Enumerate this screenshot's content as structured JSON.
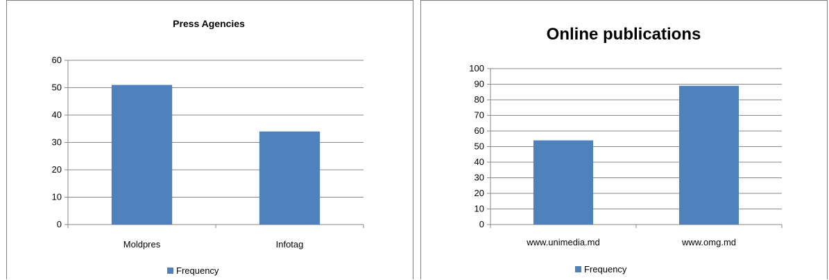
{
  "chart_data": [
    {
      "type": "bar",
      "title": "Press Agencies",
      "categories": [
        "Moldpres",
        "Infotag"
      ],
      "series": [
        {
          "name": "Frequency",
          "values": [
            51,
            34
          ]
        }
      ],
      "ylim": [
        0,
        60
      ],
      "yticks": [
        0,
        10,
        20,
        30,
        40,
        50,
        60
      ],
      "grid": true,
      "legend": "bottom",
      "color": "#4f81bd"
    },
    {
      "type": "bar",
      "title": "Online publications",
      "categories": [
        "www.unimedia.md",
        "www.omg.md"
      ],
      "series": [
        {
          "name": "Frequency",
          "values": [
            54,
            89
          ]
        }
      ],
      "ylim": [
        0,
        100
      ],
      "yticks": [
        0,
        10,
        20,
        30,
        40,
        50,
        60,
        70,
        80,
        90,
        100
      ],
      "grid": true,
      "legend": "bottom",
      "color": "#4f81bd"
    }
  ]
}
